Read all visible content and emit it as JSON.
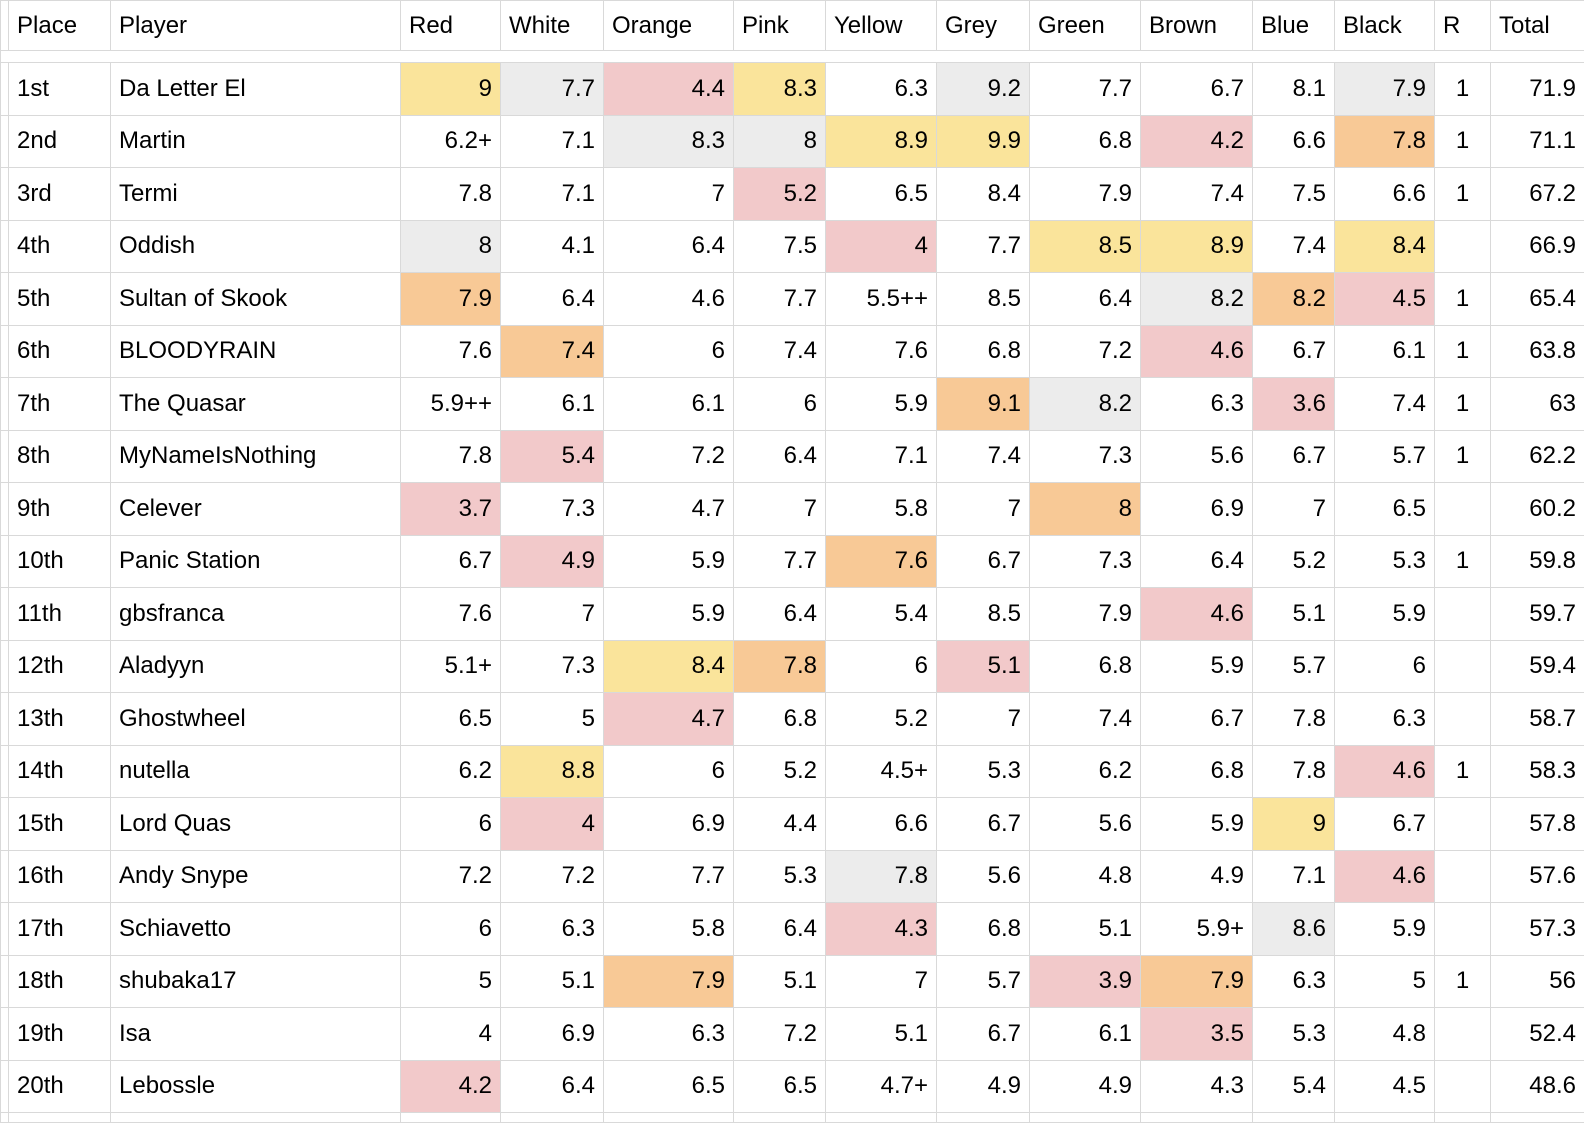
{
  "table": {
    "columns": [
      "Place",
      "Player",
      "Red",
      "White",
      "Orange",
      "Pink",
      "Yellow",
      "Grey",
      "Green",
      "Brown",
      "Blue",
      "Black",
      "R",
      "Total"
    ],
    "highlight_colors": {
      "yellow": "#fae49b",
      "grey": "#ececec",
      "pink": "#f2c9ca",
      "orange": "#f8c996"
    },
    "divider_color": "#dce0e9",
    "gridline_color": "#d9d9d9",
    "rows": [
      {
        "place": "1st",
        "player": "Da Letter El",
        "scores": [
          {
            "v": "9",
            "bg": "yellow"
          },
          {
            "v": "7.7",
            "bg": "grey"
          },
          {
            "v": "4.4",
            "bg": "pink"
          },
          {
            "v": "8.3",
            "bg": "yellow"
          },
          {
            "v": "6.3"
          },
          {
            "v": "9.2",
            "bg": "grey"
          },
          {
            "v": "7.7"
          },
          {
            "v": "6.7"
          },
          {
            "v": "8.1"
          },
          {
            "v": "7.9",
            "bg": "grey"
          }
        ],
        "r": "1",
        "total": "71.9"
      },
      {
        "place": "2nd",
        "player": "Martin",
        "scores": [
          {
            "v": "6.2+"
          },
          {
            "v": "7.1"
          },
          {
            "v": "8.3",
            "bg": "grey"
          },
          {
            "v": "8",
            "bg": "grey"
          },
          {
            "v": "8.9",
            "bg": "yellow"
          },
          {
            "v": "9.9",
            "bg": "yellow"
          },
          {
            "v": "6.8"
          },
          {
            "v": "4.2",
            "bg": "pink"
          },
          {
            "v": "6.6"
          },
          {
            "v": "7.8",
            "bg": "orange"
          }
        ],
        "r": "1",
        "total": "71.1"
      },
      {
        "place": "3rd",
        "player": "Termi",
        "scores": [
          {
            "v": "7.8"
          },
          {
            "v": "7.1"
          },
          {
            "v": "7"
          },
          {
            "v": "5.2",
            "bg": "pink"
          },
          {
            "v": "6.5"
          },
          {
            "v": "8.4"
          },
          {
            "v": "7.9"
          },
          {
            "v": "7.4"
          },
          {
            "v": "7.5"
          },
          {
            "v": "6.6"
          }
        ],
        "r": "1",
        "total": "67.2"
      },
      {
        "place": "4th",
        "player": "Oddish",
        "scores": [
          {
            "v": "8",
            "bg": "grey"
          },
          {
            "v": "4.1"
          },
          {
            "v": "6.4"
          },
          {
            "v": "7.5"
          },
          {
            "v": "4",
            "bg": "pink"
          },
          {
            "v": "7.7"
          },
          {
            "v": "8.5",
            "bg": "yellow"
          },
          {
            "v": "8.9",
            "bg": "yellow"
          },
          {
            "v": "7.4"
          },
          {
            "v": "8.4",
            "bg": "yellow"
          }
        ],
        "r": "",
        "total": "66.9"
      },
      {
        "place": "5th",
        "player": "Sultan of Skook",
        "scores": [
          {
            "v": "7.9",
            "bg": "orange"
          },
          {
            "v": "6.4"
          },
          {
            "v": "4.6"
          },
          {
            "v": "7.7"
          },
          {
            "v": "5.5++"
          },
          {
            "v": "8.5"
          },
          {
            "v": "6.4"
          },
          {
            "v": "8.2",
            "bg": "grey"
          },
          {
            "v": "8.2",
            "bg": "orange"
          },
          {
            "v": "4.5",
            "bg": "pink"
          }
        ],
        "r": "1",
        "total": "65.4"
      },
      {
        "place": "6th",
        "player": "BLOODYRAIN",
        "scores": [
          {
            "v": "7.6"
          },
          {
            "v": "7.4",
            "bg": "orange"
          },
          {
            "v": "6"
          },
          {
            "v": "7.4"
          },
          {
            "v": "7.6"
          },
          {
            "v": "6.8"
          },
          {
            "v": "7.2"
          },
          {
            "v": "4.6",
            "bg": "pink"
          },
          {
            "v": "6.7"
          },
          {
            "v": "6.1"
          }
        ],
        "r": "1",
        "total": "63.8"
      },
      {
        "place": "7th",
        "player": "The Quasar",
        "scores": [
          {
            "v": "5.9++"
          },
          {
            "v": "6.1"
          },
          {
            "v": "6.1"
          },
          {
            "v": "6"
          },
          {
            "v": "5.9"
          },
          {
            "v": "9.1",
            "bg": "orange"
          },
          {
            "v": "8.2",
            "bg": "grey"
          },
          {
            "v": "6.3"
          },
          {
            "v": "3.6",
            "bg": "pink"
          },
          {
            "v": "7.4"
          }
        ],
        "r": "1",
        "total": "63"
      },
      {
        "place": "8th",
        "player": "MyNameIsNothing",
        "scores": [
          {
            "v": "7.8"
          },
          {
            "v": "5.4",
            "bg": "pink"
          },
          {
            "v": "7.2"
          },
          {
            "v": "6.4"
          },
          {
            "v": "7.1"
          },
          {
            "v": "7.4"
          },
          {
            "v": "7.3"
          },
          {
            "v": "5.6"
          },
          {
            "v": "6.7"
          },
          {
            "v": "5.7"
          }
        ],
        "r": "1",
        "total": "62.2"
      },
      {
        "place": "9th",
        "player": "Celever",
        "scores": [
          {
            "v": "3.7",
            "bg": "pink"
          },
          {
            "v": "7.3"
          },
          {
            "v": "4.7"
          },
          {
            "v": "7"
          },
          {
            "v": "5.8"
          },
          {
            "v": "7"
          },
          {
            "v": "8",
            "bg": "orange"
          },
          {
            "v": "6.9"
          },
          {
            "v": "7"
          },
          {
            "v": "6.5"
          }
        ],
        "r": "",
        "total": "60.2"
      },
      {
        "place": "10th",
        "player": "Panic Station",
        "scores": [
          {
            "v": "6.7"
          },
          {
            "v": "4.9",
            "bg": "pink"
          },
          {
            "v": "5.9"
          },
          {
            "v": "7.7"
          },
          {
            "v": "7.6",
            "bg": "orange"
          },
          {
            "v": "6.7"
          },
          {
            "v": "7.3"
          },
          {
            "v": "6.4"
          },
          {
            "v": "5.2"
          },
          {
            "v": "5.3"
          }
        ],
        "r": "1",
        "total": "59.8"
      },
      {
        "place": "11th",
        "player": "gbsfranca",
        "scores": [
          {
            "v": "7.6"
          },
          {
            "v": "7"
          },
          {
            "v": "5.9"
          },
          {
            "v": "6.4"
          },
          {
            "v": "5.4"
          },
          {
            "v": "8.5"
          },
          {
            "v": "7.9"
          },
          {
            "v": "4.6",
            "bg": "pink"
          },
          {
            "v": "5.1"
          },
          {
            "v": "5.9"
          }
        ],
        "r": "",
        "total": "59.7"
      },
      {
        "place": "12th",
        "player": "Aladyyn",
        "scores": [
          {
            "v": "5.1+"
          },
          {
            "v": "7.3"
          },
          {
            "v": "8.4",
            "bg": "yellow"
          },
          {
            "v": "7.8",
            "bg": "orange"
          },
          {
            "v": "6"
          },
          {
            "v": "5.1",
            "bg": "pink"
          },
          {
            "v": "6.8"
          },
          {
            "v": "5.9"
          },
          {
            "v": "5.7"
          },
          {
            "v": "6"
          }
        ],
        "r": "",
        "total": "59.4"
      },
      {
        "place": "13th",
        "player": "Ghostwheel",
        "scores": [
          {
            "v": "6.5"
          },
          {
            "v": "5"
          },
          {
            "v": "4.7",
            "bg": "pink"
          },
          {
            "v": "6.8"
          },
          {
            "v": "5.2"
          },
          {
            "v": "7"
          },
          {
            "v": "7.4"
          },
          {
            "v": "6.7"
          },
          {
            "v": "7.8"
          },
          {
            "v": "6.3"
          }
        ],
        "r": "",
        "total": "58.7"
      },
      {
        "place": "14th",
        "player": "nutella",
        "scores": [
          {
            "v": "6.2"
          },
          {
            "v": "8.8",
            "bg": "yellow"
          },
          {
            "v": "6"
          },
          {
            "v": "5.2"
          },
          {
            "v": "4.5+"
          },
          {
            "v": "5.3"
          },
          {
            "v": "6.2"
          },
          {
            "v": "6.8"
          },
          {
            "v": "7.8"
          },
          {
            "v": "4.6",
            "bg": "pink"
          }
        ],
        "r": "1",
        "total": "58.3"
      },
      {
        "place": "15th",
        "player": "Lord Quas",
        "scores": [
          {
            "v": "6"
          },
          {
            "v": "4",
            "bg": "pink"
          },
          {
            "v": "6.9"
          },
          {
            "v": "4.4"
          },
          {
            "v": "6.6"
          },
          {
            "v": "6.7"
          },
          {
            "v": "5.6"
          },
          {
            "v": "5.9"
          },
          {
            "v": "9",
            "bg": "yellow"
          },
          {
            "v": "6.7"
          }
        ],
        "r": "",
        "total": "57.8"
      },
      {
        "place": "16th",
        "player": "Andy Snype",
        "scores": [
          {
            "v": "7.2"
          },
          {
            "v": "7.2"
          },
          {
            "v": "7.7"
          },
          {
            "v": "5.3"
          },
          {
            "v": "7.8",
            "bg": "grey"
          },
          {
            "v": "5.6"
          },
          {
            "v": "4.8"
          },
          {
            "v": "4.9"
          },
          {
            "v": "7.1"
          },
          {
            "v": "4.6",
            "bg": "pink"
          }
        ],
        "r": "",
        "total": "57.6"
      },
      {
        "place": "17th",
        "player": "Schiavetto",
        "scores": [
          {
            "v": "6"
          },
          {
            "v": "6.3"
          },
          {
            "v": "5.8"
          },
          {
            "v": "6.4"
          },
          {
            "v": "4.3",
            "bg": "pink"
          },
          {
            "v": "6.8"
          },
          {
            "v": "5.1"
          },
          {
            "v": "5.9+"
          },
          {
            "v": "8.6",
            "bg": "grey"
          },
          {
            "v": "5.9"
          }
        ],
        "r": "",
        "total": "57.3"
      },
      {
        "place": "18th",
        "player": "shubaka17",
        "scores": [
          {
            "v": "5"
          },
          {
            "v": "5.1"
          },
          {
            "v": "7.9",
            "bg": "orange"
          },
          {
            "v": "5.1"
          },
          {
            "v": "7"
          },
          {
            "v": "5.7"
          },
          {
            "v": "3.9",
            "bg": "pink"
          },
          {
            "v": "7.9",
            "bg": "orange"
          },
          {
            "v": "6.3"
          },
          {
            "v": "5"
          }
        ],
        "r": "1",
        "total": "56"
      },
      {
        "place": "19th",
        "player": "Isa",
        "scores": [
          {
            "v": "4"
          },
          {
            "v": "6.9"
          },
          {
            "v": "6.3"
          },
          {
            "v": "7.2"
          },
          {
            "v": "5.1"
          },
          {
            "v": "6.7"
          },
          {
            "v": "6.1"
          },
          {
            "v": "3.5",
            "bg": "pink"
          },
          {
            "v": "5.3"
          },
          {
            "v": "4.8"
          }
        ],
        "r": "",
        "total": "52.4"
      },
      {
        "place": "20th",
        "player": "Lebossle",
        "scores": [
          {
            "v": "4.2",
            "bg": "pink"
          },
          {
            "v": "6.4"
          },
          {
            "v": "6.5"
          },
          {
            "v": "6.5"
          },
          {
            "v": "4.7+"
          },
          {
            "v": "4.9"
          },
          {
            "v": "4.9"
          },
          {
            "v": "4.3"
          },
          {
            "v": "5.4"
          },
          {
            "v": "4.5"
          }
        ],
        "r": "",
        "total": "48.6"
      }
    ]
  }
}
